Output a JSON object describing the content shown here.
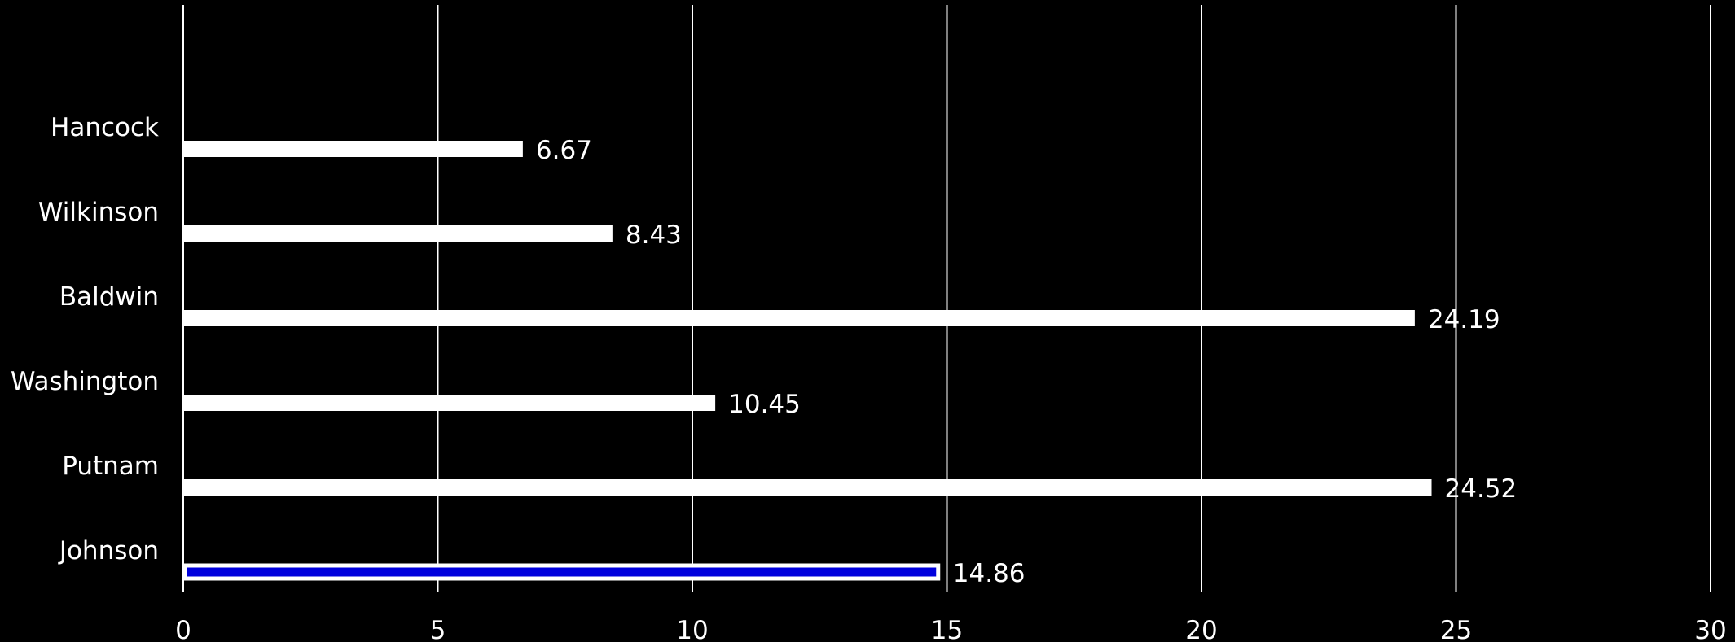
{
  "chart_data": {
    "type": "bar",
    "orientation": "horizontal",
    "title": "",
    "xlabel": "",
    "ylabel": "",
    "categories": [
      "Hancock",
      "Wilkinson",
      "Baldwin",
      "Washington",
      "Putnam",
      "Johnson"
    ],
    "values": [
      6.67,
      8.43,
      24.19,
      10.45,
      24.52,
      14.86
    ],
    "value_labels": [
      "6.67",
      "8.43",
      "24.19",
      "10.45",
      "24.52",
      "14.86"
    ],
    "highlighted_category": "Johnson",
    "xlim": [
      0,
      30
    ],
    "x_ticks": [
      "0",
      "5",
      "10",
      "15",
      "20",
      "25",
      "30"
    ],
    "grid": "vertical",
    "legend": "none",
    "colors": {
      "background": "#000000",
      "bar_fill": "#ffffff",
      "highlight_fill": "#0000dd",
      "highlight_outline": "#ffffff",
      "grid": "#ffffff",
      "text": "#ffffff"
    }
  }
}
